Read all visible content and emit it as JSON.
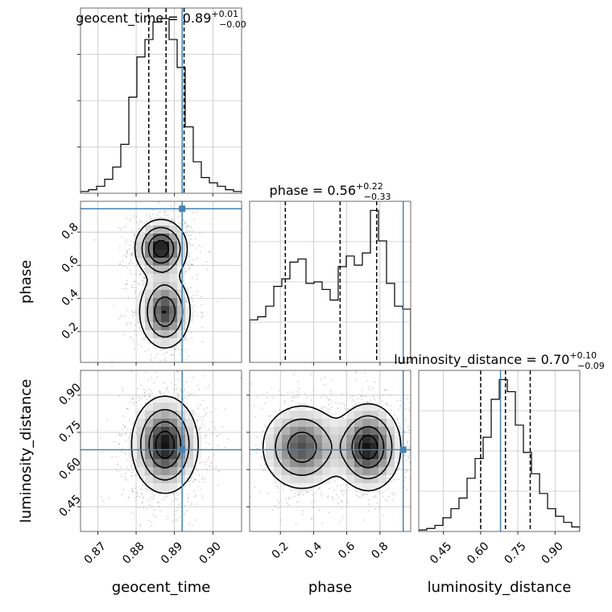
{
  "chart_data": {
    "type": "corner",
    "parameters": [
      "geocent_time",
      "phase",
      "luminosity_distance"
    ],
    "truths": {
      "geocent_time": 0.892,
      "phase": 0.94,
      "luminosity_distance": 0.68
    },
    "ranges": {
      "geocent_time": [
        0.8655,
        0.9075
      ],
      "phase": [
        0.015,
        0.985
      ],
      "luminosity_distance": [
        0.35,
        1.0
      ]
    },
    "ticks": {
      "geocent_time": {
        "values": [
          0.87,
          0.88,
          0.89,
          0.9
        ],
        "labels": [
          "0.87",
          "0.88",
          "0.89",
          "0.90"
        ]
      },
      "phase": {
        "values": [
          0.2,
          0.4,
          0.6,
          0.8
        ],
        "labels": [
          "0.2",
          "0.4",
          "0.6",
          "0.8"
        ]
      },
      "luminosity_distance": {
        "values": [
          0.45,
          0.6,
          0.75,
          0.9
        ],
        "labels": [
          "0.45",
          "0.60",
          "0.75",
          "0.90"
        ]
      }
    },
    "titles": [
      {
        "param": "geocent_time",
        "name": "geocent_time",
        "median": "0.89",
        "plus": "+0.01",
        "minus": "−0.00"
      },
      {
        "param": "phase",
        "name": "phase",
        "median": "0.56",
        "plus": "+0.22",
        "minus": "−0.33"
      },
      {
        "param": "luminosity_distance",
        "name": "luminosity_distance",
        "median": "0.70",
        "plus": "+0.10",
        "minus": "−0.09"
      }
    ],
    "quantiles": {
      "geocent_time": [
        0.8833,
        0.8878,
        0.8925
      ],
      "phase": [
        0.23,
        0.56,
        0.78
      ],
      "luminosity_distance": [
        0.6,
        0.7,
        0.8
      ]
    },
    "histograms": {
      "geocent_time": {
        "edges": [
          0.8655,
          0.8676,
          0.8697,
          0.8718,
          0.8739,
          0.876,
          0.8781,
          0.8802,
          0.8823,
          0.8844,
          0.8865,
          0.8886,
          0.8907,
          0.8928,
          0.8949,
          0.897,
          0.8991,
          0.9012,
          0.9033,
          0.9054,
          0.9075
        ],
        "counts": [
          1,
          2,
          4,
          8,
          15,
          28,
          55,
          78,
          88,
          98,
          100,
          88,
          72,
          38,
          18,
          9,
          6,
          4,
          2,
          1
        ]
      },
      "phase": {
        "edges": [
          0.015,
          0.0635,
          0.112,
          0.1605,
          0.209,
          0.2575,
          0.306,
          0.3545,
          0.403,
          0.4515,
          0.5,
          0.5485,
          0.597,
          0.6455,
          0.694,
          0.7425,
          0.791,
          0.8395,
          0.888,
          0.9365,
          0.985
        ],
        "counts": [
          28,
          30,
          37,
          50,
          55,
          66,
          68,
          52,
          53,
          48,
          41,
          63,
          70,
          64,
          72,
          100,
          80,
          52,
          37,
          35
        ]
      },
      "luminosity_distance": {
        "edges": [
          0.35,
          0.3825,
          0.415,
          0.4475,
          0.48,
          0.5125,
          0.545,
          0.5775,
          0.61,
          0.6425,
          0.675,
          0.7075,
          0.74,
          0.7725,
          0.805,
          0.8375,
          0.87,
          0.9025,
          0.935,
          0.9675,
          1.0
        ],
        "counts": [
          1,
          2,
          4,
          9,
          15,
          22,
          35,
          48,
          62,
          87,
          100,
          92,
          70,
          52,
          38,
          25,
          15,
          10,
          6,
          3
        ]
      }
    },
    "density_2d": [
      {
        "x": "geocent_time",
        "y": "phase",
        "blobs": [
          {
            "cx": 0.8865,
            "cy": 0.7,
            "sx": 0.0033,
            "sy": 0.085,
            "w": 1.0
          },
          {
            "cx": 0.8875,
            "cy": 0.32,
            "sx": 0.0033,
            "sy": 0.11,
            "w": 0.85
          }
        ]
      },
      {
        "x": "geocent_time",
        "y": "luminosity_distance",
        "blobs": [
          {
            "cx": 0.8875,
            "cy": 0.7,
            "sx": 0.0042,
            "sy": 0.095,
            "w": 1.0
          }
        ]
      },
      {
        "x": "phase",
        "y": "luminosity_distance",
        "blobs": [
          {
            "cx": 0.33,
            "cy": 0.69,
            "sx": 0.12,
            "sy": 0.085,
            "w": 0.8
          },
          {
            "cx": 0.73,
            "cy": 0.69,
            "sx": 0.095,
            "sy": 0.085,
            "w": 1.0
          }
        ]
      }
    ],
    "colors": {
      "truth": "#4682b4",
      "line": "#000000",
      "grid": "#b0b0b0",
      "points": "#9a9a9a"
    }
  }
}
